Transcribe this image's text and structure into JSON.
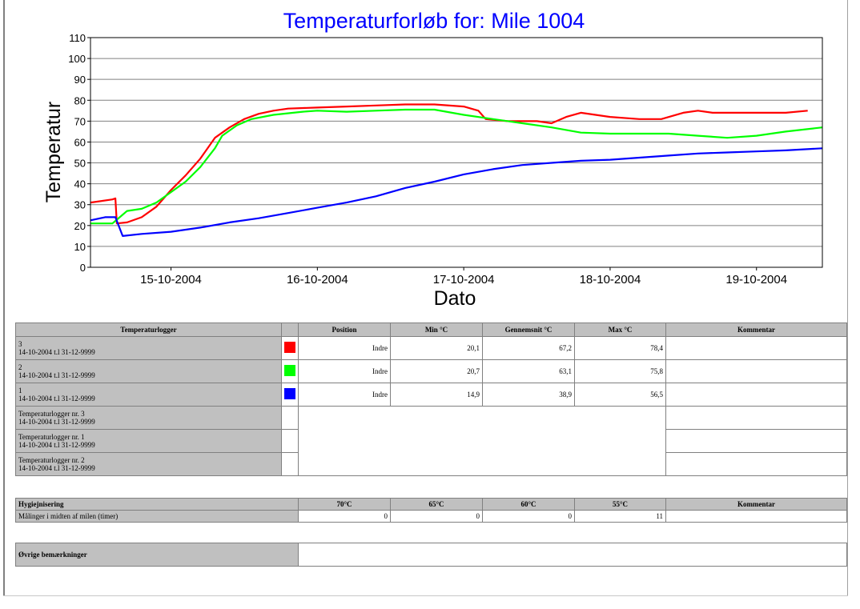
{
  "chart_data": {
    "type": "line",
    "title": "Temperaturforløb for: Mile 1004",
    "xlabel": "Dato",
    "ylabel": "Temperatur",
    "ylim": [
      0,
      110
    ],
    "yticks": [
      0,
      10,
      20,
      30,
      40,
      50,
      60,
      70,
      80,
      90,
      100,
      110
    ],
    "xlim": [
      14.45,
      19.45
    ],
    "xticks": [
      {
        "x": 15,
        "label": "15-10-2004"
      },
      {
        "x": 16,
        "label": "16-10-2004"
      },
      {
        "x": 17,
        "label": "17-10-2004"
      },
      {
        "x": 18,
        "label": "18-10-2004"
      },
      {
        "x": 19,
        "label": "19-10-2004"
      }
    ],
    "grid": "horizontal",
    "series": [
      {
        "color": "#ff0000",
        "points": [
          [
            14.45,
            31
          ],
          [
            14.6,
            32.5
          ],
          [
            14.62,
            33
          ],
          [
            14.63,
            21
          ],
          [
            14.7,
            21.5
          ],
          [
            14.8,
            24
          ],
          [
            14.9,
            29
          ],
          [
            15.0,
            37
          ],
          [
            15.1,
            44
          ],
          [
            15.2,
            52
          ],
          [
            15.3,
            62
          ],
          [
            15.4,
            67
          ],
          [
            15.5,
            71
          ],
          [
            15.6,
            73.5
          ],
          [
            15.7,
            75
          ],
          [
            15.8,
            76
          ],
          [
            16.0,
            76.5
          ],
          [
            16.2,
            77
          ],
          [
            16.4,
            77.5
          ],
          [
            16.6,
            78
          ],
          [
            16.8,
            78
          ],
          [
            17.0,
            77
          ],
          [
            17.1,
            75
          ],
          [
            17.15,
            71
          ],
          [
            17.3,
            70
          ],
          [
            17.5,
            70
          ],
          [
            17.6,
            69
          ],
          [
            17.7,
            72
          ],
          [
            17.8,
            74
          ],
          [
            17.9,
            73
          ],
          [
            18.0,
            72
          ],
          [
            18.2,
            71
          ],
          [
            18.35,
            71
          ],
          [
            18.5,
            74
          ],
          [
            18.6,
            75
          ],
          [
            18.7,
            74
          ],
          [
            18.9,
            74
          ],
          [
            19.0,
            74
          ],
          [
            19.2,
            74
          ],
          [
            19.35,
            75
          ]
        ]
      },
      {
        "color": "#00ff00",
        "points": [
          [
            14.45,
            21
          ],
          [
            14.55,
            21
          ],
          [
            14.6,
            21
          ],
          [
            14.65,
            24
          ],
          [
            14.7,
            27
          ],
          [
            14.8,
            28
          ],
          [
            14.9,
            31
          ],
          [
            15.0,
            36
          ],
          [
            15.1,
            41
          ],
          [
            15.2,
            48
          ],
          [
            15.3,
            57
          ],
          [
            15.35,
            63
          ],
          [
            15.45,
            68
          ],
          [
            15.55,
            71
          ],
          [
            15.7,
            73
          ],
          [
            15.9,
            74.5
          ],
          [
            16.0,
            75
          ],
          [
            16.2,
            74.5
          ],
          [
            16.4,
            75
          ],
          [
            16.6,
            75.5
          ],
          [
            16.8,
            75.5
          ],
          [
            17.0,
            73
          ],
          [
            17.2,
            71
          ],
          [
            17.4,
            69
          ],
          [
            17.6,
            67
          ],
          [
            17.8,
            64.5
          ],
          [
            18.0,
            64
          ],
          [
            18.2,
            64
          ],
          [
            18.4,
            64
          ],
          [
            18.6,
            63
          ],
          [
            18.8,
            62
          ],
          [
            19.0,
            63
          ],
          [
            19.2,
            65
          ],
          [
            19.45,
            67
          ]
        ]
      },
      {
        "color": "#0000ff",
        "points": [
          [
            14.45,
            22.5
          ],
          [
            14.55,
            24
          ],
          [
            14.62,
            24
          ],
          [
            14.67,
            15
          ],
          [
            14.8,
            16
          ],
          [
            15.0,
            17
          ],
          [
            15.2,
            19
          ],
          [
            15.4,
            21.5
          ],
          [
            15.6,
            23.5
          ],
          [
            15.8,
            26
          ],
          [
            16.0,
            28.5
          ],
          [
            16.2,
            31
          ],
          [
            16.4,
            34
          ],
          [
            16.6,
            38
          ],
          [
            16.8,
            41
          ],
          [
            17.0,
            44.5
          ],
          [
            17.2,
            47
          ],
          [
            17.4,
            49
          ],
          [
            17.6,
            50
          ],
          [
            17.8,
            51
          ],
          [
            18.0,
            51.5
          ],
          [
            18.2,
            52.5
          ],
          [
            18.4,
            53.5
          ],
          [
            18.6,
            54.5
          ],
          [
            18.8,
            55
          ],
          [
            19.0,
            55.5
          ],
          [
            19.2,
            56
          ],
          [
            19.45,
            57
          ]
        ]
      }
    ]
  },
  "table": {
    "headers": {
      "logger": "Temperaturlogger",
      "position": "Position",
      "min": "Min °C",
      "avg": "Gennemsnit °C",
      "max": "Max °C",
      "comment": "Kommentar"
    },
    "rows": [
      {
        "id": "3",
        "dates": "14-10-2004 t.l 31-12-9999",
        "color": "#ff0000",
        "position": "Indre",
        "min": "20,1",
        "avg": "67,2",
        "max": "78,4"
      },
      {
        "id": "2",
        "dates": "14-10-2004 t.l 31-12-9999",
        "color": "#00ff00",
        "position": "Indre",
        "min": "20,7",
        "avg": "63,1",
        "max": "75,8"
      },
      {
        "id": "1",
        "dates": "14-10-2004 t.l 31-12-9999",
        "color": "#0000ff",
        "position": "Indre",
        "min": "14,9",
        "avg": "38,9",
        "max": "56,5"
      }
    ],
    "extra_rows": [
      {
        "name": "Temperaturlogger nr. 3",
        "dates": "14-10-2004 t.l 31-12-9999"
      },
      {
        "name": "Temperaturlogger nr. 1",
        "dates": "14-10-2004 t.l 31-12-9999"
      },
      {
        "name": "Temperaturlogger nr. 2",
        "dates": "14-10-2004 t.l 31-12-9999"
      }
    ]
  },
  "hygiene": {
    "headers": [
      "Hygiejnisering",
      "70°C",
      "65°C",
      "60°C",
      "55°C",
      "Kommentar"
    ],
    "row_label": "Målinger i midten af milen (timer)",
    "values": [
      "0",
      "0",
      "0",
      "11"
    ]
  },
  "other": {
    "label": "Øvrige bemærkninger"
  }
}
